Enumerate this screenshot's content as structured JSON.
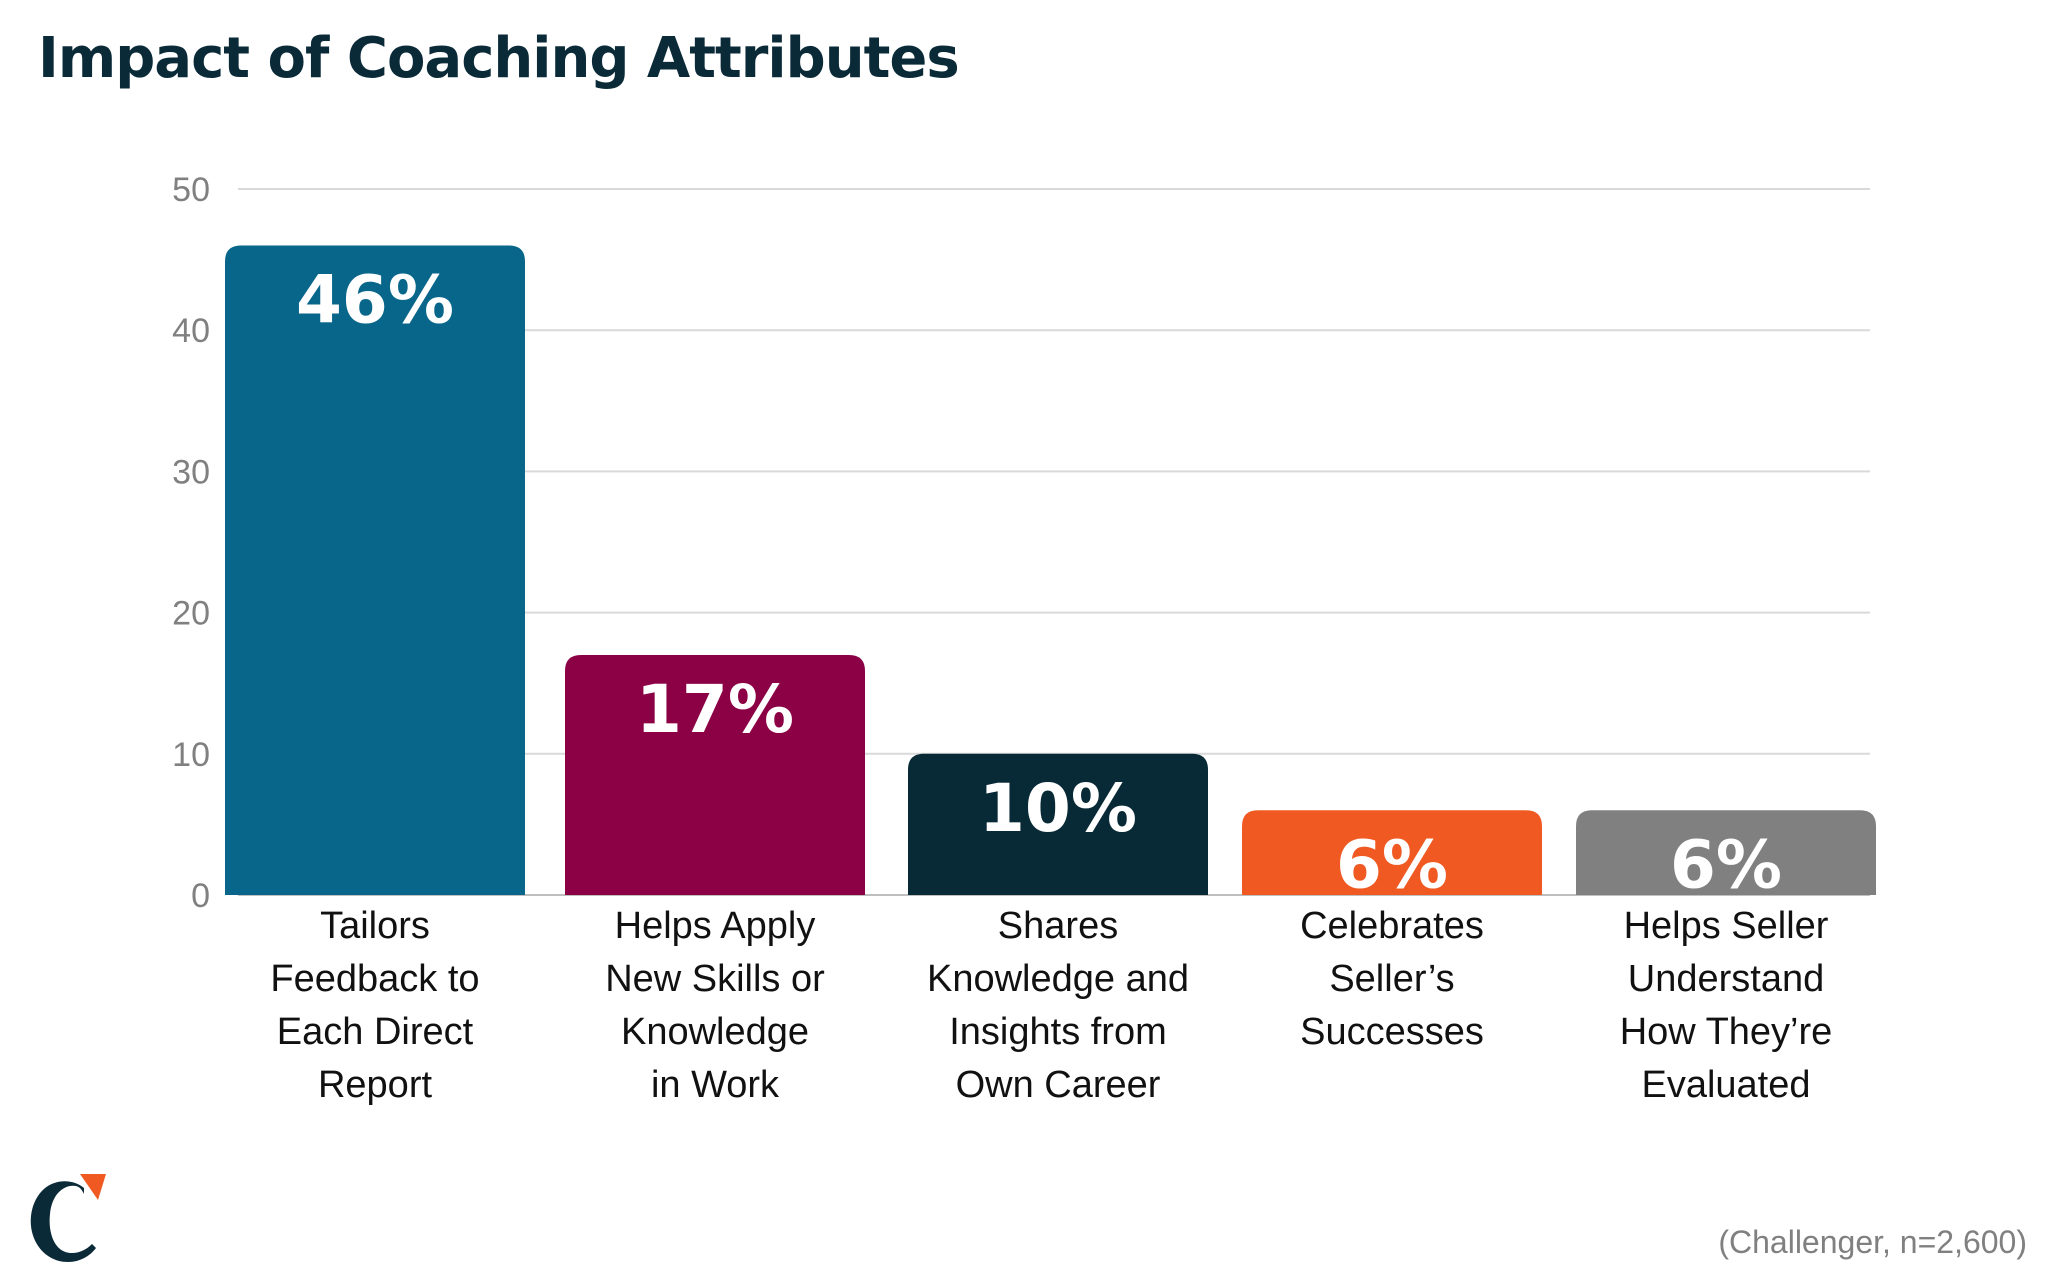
{
  "title": "Impact of Coaching Attributes",
  "source": "(Challenger, n=2,600)",
  "colors": {
    "title": "#0b2a38",
    "axis_text": "#808080",
    "grid": "#d9d9d9",
    "category_text": "#111111",
    "value_label": "#ffffff"
  },
  "logo": {
    "icon": "challenger-c-logo-icon"
  },
  "chart_data": {
    "type": "bar",
    "title": "Impact of Coaching Attributes",
    "xlabel": "",
    "ylabel": "",
    "ylim": [
      0,
      50
    ],
    "yticks": [
      0,
      10,
      20,
      30,
      40,
      50
    ],
    "grid": true,
    "categories": [
      [
        "Tailors",
        "Feedback to",
        "Each Direct",
        "Report"
      ],
      [
        "Helps Apply",
        "New Skills or",
        "Knowledge",
        "in Work"
      ],
      [
        "Shares",
        "Knowledge and",
        "Insights from",
        "Own Career"
      ],
      [
        "Celebrates",
        "Seller’s",
        "Successes"
      ],
      [
        "Helps Seller",
        "Understand",
        "How They’re",
        "Evaluated"
      ]
    ],
    "values": [
      46,
      17,
      10,
      6,
      6
    ],
    "value_labels": [
      "46%",
      "17%",
      "10%",
      "6%",
      "6%"
    ],
    "bar_colors": [
      "#08668a",
      "#8c0046",
      "#082a36",
      "#f05a22",
      "#808080"
    ]
  }
}
